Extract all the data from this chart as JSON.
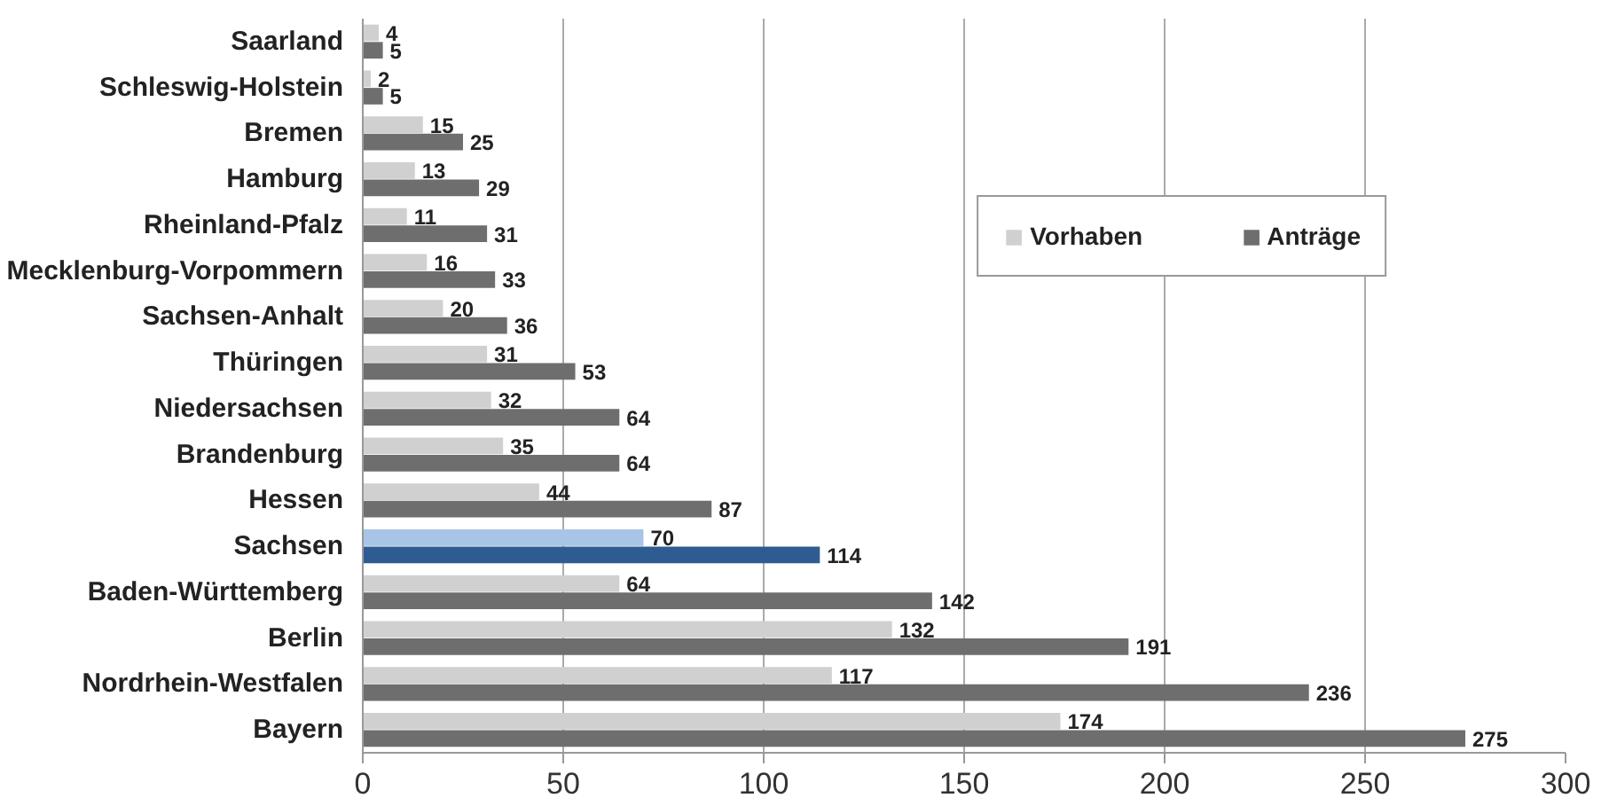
{
  "chart_data": {
    "type": "bar",
    "orientation": "horizontal",
    "categories": [
      "Saarland",
      "Schleswig-Holstein",
      "Bremen",
      "Hamburg",
      "Rheinland-Pfalz",
      "Mecklenburg-Vorpommern",
      "Sachsen-Anhalt",
      "Thüringen",
      "Niedersachsen",
      "Brandenburg",
      "Hessen",
      "Sachsen",
      "Baden-Württemberg",
      "Berlin",
      "Nordrhein-Westfalen",
      "Bayern"
    ],
    "series": [
      {
        "name": "Vorhaben",
        "color": "#d0d0d0",
        "colors": [
          "#d0d0d0",
          "#d0d0d0",
          "#d0d0d0",
          "#d0d0d0",
          "#d0d0d0",
          "#d0d0d0",
          "#d0d0d0",
          "#d0d0d0",
          "#d0d0d0",
          "#d0d0d0",
          "#d0d0d0",
          "#a8c4e6",
          "#d0d0d0",
          "#d0d0d0",
          "#d0d0d0",
          "#d0d0d0"
        ],
        "values": [
          4,
          2,
          15,
          13,
          11,
          16,
          20,
          31,
          32,
          35,
          44,
          70,
          64,
          132,
          117,
          174
        ]
      },
      {
        "name": "Anträge",
        "color": "#6e6e6e",
        "colors": [
          "#6e6e6e",
          "#6e6e6e",
          "#6e6e6e",
          "#6e6e6e",
          "#6e6e6e",
          "#6e6e6e",
          "#6e6e6e",
          "#6e6e6e",
          "#6e6e6e",
          "#6e6e6e",
          "#6e6e6e",
          "#2e5c92",
          "#6e6e6e",
          "#6e6e6e",
          "#6e6e6e",
          "#6e6e6e"
        ],
        "values": [
          5,
          5,
          25,
          29,
          31,
          33,
          36,
          53,
          64,
          64,
          87,
          114,
          142,
          191,
          236,
          275
        ]
      }
    ],
    "xlim": [
      0,
      300
    ],
    "xticks": [
      0,
      50,
      100,
      150,
      200,
      250,
      300
    ],
    "grid": "x",
    "legend": "top right",
    "data_labels": true
  }
}
